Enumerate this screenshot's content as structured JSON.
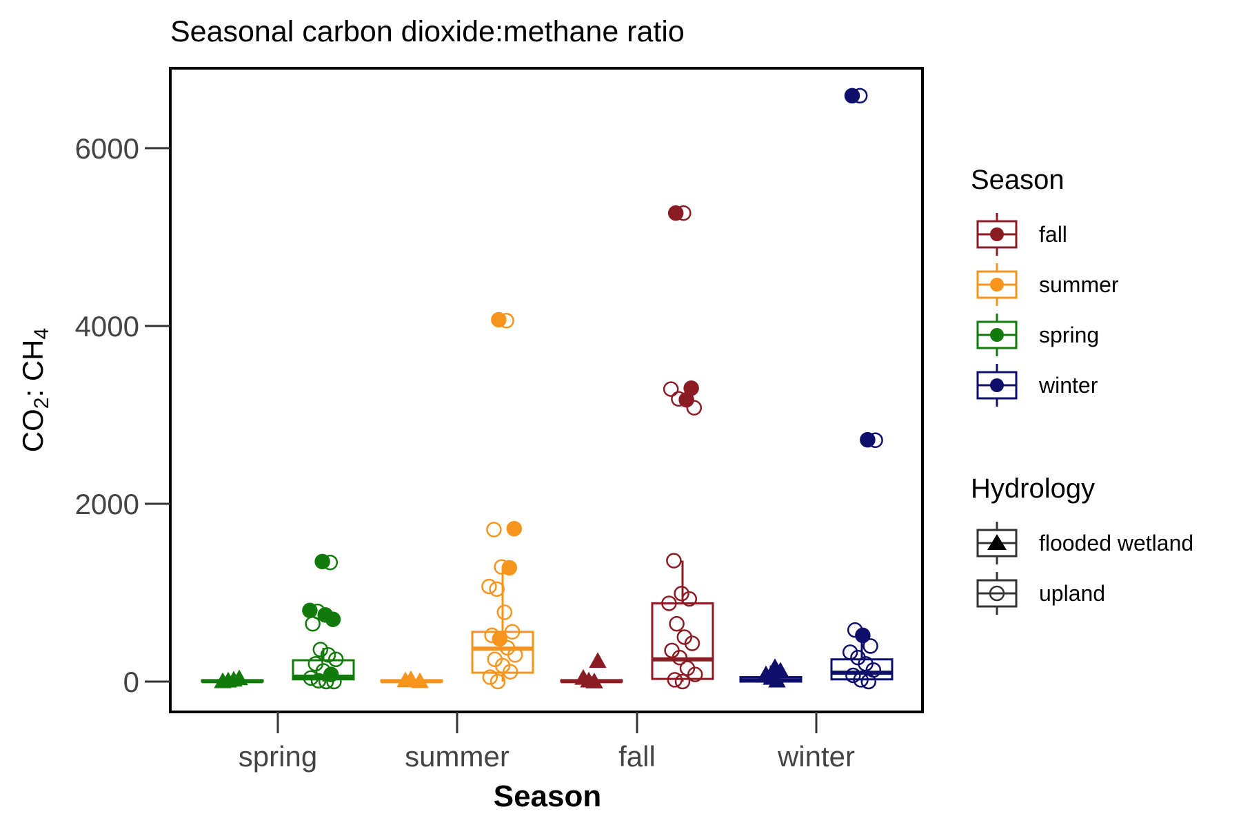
{
  "chart_data": {
    "type": "box",
    "title": "Seasonal carbon dioxide:methane ratio",
    "xlabel": "Season",
    "ylabel": {
      "main": "CO",
      "sub1": "2",
      "mid": ": CH",
      "sub2": "4"
    },
    "ylim": [
      -300,
      6850
    ],
    "yticks": [
      0,
      2000,
      4000,
      6000
    ],
    "categories": [
      "spring",
      "summer",
      "fall",
      "winter"
    ],
    "grid": false,
    "legend_position": "right",
    "colors": {
      "spring": "#117a0a",
      "summer": "#f7941d",
      "fall": "#8b1c24",
      "winter": "#0e0f6b"
    },
    "legends": [
      {
        "title": "Season",
        "entries": [
          {
            "label": "fall",
            "color": "#8b1c24"
          },
          {
            "label": "summer",
            "color": "#f7941d"
          },
          {
            "label": "spring",
            "color": "#117a0a"
          },
          {
            "label": "winter",
            "color": "#0e0f6b"
          }
        ]
      },
      {
        "title": "Hydrology",
        "entries": [
          {
            "label": "flooded wetland",
            "shape": "triangle"
          },
          {
            "label": "upland",
            "shape": "circle"
          }
        ]
      }
    ],
    "series": [
      {
        "category": "spring",
        "hydrology": "flooded wetland",
        "box": {
          "q1": 0,
          "median": 5,
          "q3": 15,
          "lower": 0,
          "upper": 40
        },
        "points": [
          {
            "y": 2,
            "filled": true
          },
          {
            "y": 10,
            "filled": true
          },
          {
            "y": 20,
            "filled": true
          },
          {
            "y": 35,
            "filled": true
          }
        ]
      },
      {
        "category": "spring",
        "hydrology": "upland",
        "box": {
          "q1": 25,
          "median": 55,
          "q3": 240,
          "lower": 0,
          "upper": 380
        },
        "points": [
          {
            "y": 1350,
            "filled": true
          },
          {
            "y": 1340,
            "filled": false
          },
          {
            "y": 800,
            "filled": true
          },
          {
            "y": 790,
            "filled": false
          },
          {
            "y": 750,
            "filled": true
          },
          {
            "y": 700,
            "filled": true
          },
          {
            "y": 650,
            "filled": false
          },
          {
            "y": 360,
            "filled": false
          },
          {
            "y": 300,
            "filled": false
          },
          {
            "y": 250,
            "filled": false
          },
          {
            "y": 200,
            "filled": false
          },
          {
            "y": 120,
            "filled": false
          },
          {
            "y": 80,
            "filled": true
          },
          {
            "y": 40,
            "filled": false
          },
          {
            "y": 10,
            "filled": false
          },
          {
            "y": 0,
            "filled": false
          },
          {
            "y": 0,
            "filled": false
          }
        ]
      },
      {
        "category": "summer",
        "hydrology": "flooded wetland",
        "box": {
          "q1": 0,
          "median": 5,
          "q3": 15,
          "lower": 0,
          "upper": 40
        },
        "points": [
          {
            "y": 3,
            "filled": true
          },
          {
            "y": 12,
            "filled": true
          },
          {
            "y": 25,
            "filled": true
          }
        ]
      },
      {
        "category": "summer",
        "hydrology": "upland",
        "box": {
          "q1": 100,
          "median": 370,
          "q3": 560,
          "lower": 0,
          "upper": 1300
        },
        "points": [
          {
            "y": 4070,
            "filled": true
          },
          {
            "y": 4060,
            "filled": false
          },
          {
            "y": 1720,
            "filled": true
          },
          {
            "y": 1710,
            "filled": false
          },
          {
            "y": 1290,
            "filled": false
          },
          {
            "y": 1280,
            "filled": true
          },
          {
            "y": 1070,
            "filled": false
          },
          {
            "y": 1040,
            "filled": false
          },
          {
            "y": 780,
            "filled": false
          },
          {
            "y": 560,
            "filled": false
          },
          {
            "y": 520,
            "filled": false
          },
          {
            "y": 480,
            "filled": true
          },
          {
            "y": 380,
            "filled": false
          },
          {
            "y": 300,
            "filled": false
          },
          {
            "y": 250,
            "filled": false
          },
          {
            "y": 180,
            "filled": false
          },
          {
            "y": 110,
            "filled": false
          },
          {
            "y": 50,
            "filled": false
          },
          {
            "y": 0,
            "filled": false
          }
        ]
      },
      {
        "category": "fall",
        "hydrology": "flooded wetland",
        "box": {
          "q1": 0,
          "median": 5,
          "q3": 15,
          "lower": 0,
          "upper": 60
        },
        "points": [
          {
            "y": 230,
            "filled": true
          },
          {
            "y": 40,
            "filled": true
          },
          {
            "y": 10,
            "filled": true
          },
          {
            "y": 0,
            "filled": true
          }
        ]
      },
      {
        "category": "fall",
        "hydrology": "upland",
        "box": {
          "q1": 30,
          "median": 250,
          "q3": 880,
          "lower": 0,
          "upper": 1360
        },
        "points": [
          {
            "y": 5270,
            "filled": true
          },
          {
            "y": 5270,
            "filled": false
          },
          {
            "y": 3300,
            "filled": true
          },
          {
            "y": 3290,
            "filled": false
          },
          {
            "y": 3180,
            "filled": false
          },
          {
            "y": 3170,
            "filled": true
          },
          {
            "y": 3080,
            "filled": false
          },
          {
            "y": 1360,
            "filled": false
          },
          {
            "y": 990,
            "filled": false
          },
          {
            "y": 930,
            "filled": false
          },
          {
            "y": 880,
            "filled": false
          },
          {
            "y": 650,
            "filled": false
          },
          {
            "y": 500,
            "filled": false
          },
          {
            "y": 430,
            "filled": false
          },
          {
            "y": 350,
            "filled": false
          },
          {
            "y": 270,
            "filled": false
          },
          {
            "y": 150,
            "filled": false
          },
          {
            "y": 80,
            "filled": false
          },
          {
            "y": 20,
            "filled": false
          },
          {
            "y": 0,
            "filled": false
          }
        ]
      },
      {
        "category": "winter",
        "hydrology": "flooded wetland",
        "box": {
          "q1": 0,
          "median": 15,
          "q3": 50,
          "lower": 0,
          "upper": 180
        },
        "points": [
          {
            "y": 160,
            "filled": true
          },
          {
            "y": 120,
            "filled": true
          },
          {
            "y": 80,
            "filled": true
          },
          {
            "y": 40,
            "filled": true
          },
          {
            "y": 10,
            "filled": true
          }
        ]
      },
      {
        "category": "winter",
        "hydrology": "upland",
        "box": {
          "q1": 25,
          "median": 100,
          "q3": 250,
          "lower": 0,
          "upper": 560
        },
        "points": [
          {
            "y": 6590,
            "filled": true
          },
          {
            "y": 6590,
            "filled": false
          },
          {
            "y": 2720,
            "filled": true
          },
          {
            "y": 2715,
            "filled": false
          },
          {
            "y": 580,
            "filled": false
          },
          {
            "y": 520,
            "filled": true
          },
          {
            "y": 400,
            "filled": false
          },
          {
            "y": 330,
            "filled": false
          },
          {
            "y": 270,
            "filled": false
          },
          {
            "y": 200,
            "filled": false
          },
          {
            "y": 130,
            "filled": false
          },
          {
            "y": 70,
            "filled": false
          },
          {
            "y": 20,
            "filled": false
          },
          {
            "y": 0,
            "filled": false
          }
        ]
      }
    ]
  }
}
